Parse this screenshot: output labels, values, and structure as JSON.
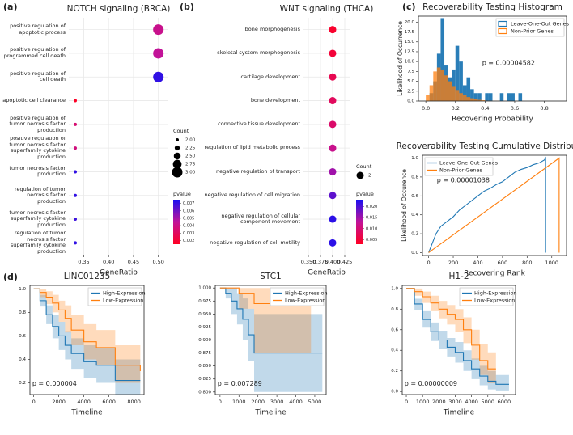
{
  "chart_data": [
    {
      "type": "dot",
      "panel": "(a)",
      "title": "NOTCH signaling (BRCA)",
      "categories": [
        "positive regulation of apoptotic process",
        "positive regulation of programmed cell death",
        "positive regulation of cell death",
        "apoptotic cell clearance",
        "positive regulation of tumor necrosis factor production",
        "positive regulation of tumor necrosis factor superfamily cytokine production",
        "tumor necrosis factor production",
        "regulation of tumor necrosis factor production",
        "tumor necrosis factor superfamily cytokine production",
        "regulation of tumor necrosis factor superfamily cytokine production"
      ],
      "values": [
        0.5,
        0.5,
        0.5,
        0.333,
        0.333,
        0.333,
        0.333,
        0.333,
        0.333,
        0.333
      ],
      "counts": [
        3,
        3,
        3,
        2,
        2,
        2,
        2,
        2,
        2,
        2
      ],
      "pvalues": [
        0.0042,
        0.0045,
        0.0071,
        0.0016,
        0.0035,
        0.0038,
        0.0071,
        0.0071,
        0.0069,
        0.0071
      ],
      "xlabel": "GeneRatio",
      "xlim": [
        0.32,
        0.52
      ],
      "xticks": [
        0.35,
        {
          "value": 0.4,
          "label": "0.40"
        },
        0.45,
        {
          "value": 0.5,
          "label": "0.50"
        }
      ],
      "grid": true,
      "size_legend": {
        "title": "Count",
        "ticks": [
          {
            "value": 2,
            "label": "2.00"
          },
          2.25,
          {
            "value": 2.5,
            "label": "2.50"
          },
          2.75,
          {
            "value": 3,
            "label": "3.00"
          }
        ]
      },
      "colorbar": {
        "title": "pvalue",
        "lim": [
          0.0015,
          0.0075
        ],
        "ticks": [
          0.007,
          0.006,
          0.005,
          0.004,
          0.003,
          0.002
        ],
        "colors": [
          "#ff0022",
          "#c21398",
          "#1a10f0"
        ]
      }
    },
    {
      "type": "dot",
      "panel": "(b)",
      "title": "WNT signaling (THCA)",
      "categories": [
        "bone morphogenesis",
        "skeletal system morphogenesis",
        "cartilage development",
        "bone development",
        "connective tissue development",
        "regulation of lipid metabolic process",
        "negative regulation of transport",
        "negative regulation of cell migration",
        "negative regulation of cellular component movement",
        "negative regulation of cell motility"
      ],
      "values": [
        0.4,
        0.4,
        0.4,
        0.4,
        0.4,
        0.4,
        0.4,
        0.4,
        0.4,
        0.4
      ],
      "counts": [
        2,
        2,
        2,
        2,
        2,
        2,
        2,
        2,
        2,
        2
      ],
      "pvalues": [
        0.004,
        0.005,
        0.007,
        0.008,
        0.009,
        0.012,
        0.015,
        0.019,
        0.022,
        0.022
      ],
      "xlabel": "GeneRatio",
      "xlim": [
        0.34,
        0.435
      ],
      "xticks": [
        {
          "value": 0.35,
          "label": "0.350"
        },
        0.375,
        {
          "value": 0.4,
          "label": "0.400"
        },
        0.425
      ],
      "grid": true,
      "size_legend": {
        "title": "Count",
        "ticks": [
          2
        ]
      },
      "colorbar": {
        "title": "pvalue",
        "lim": [
          0.003,
          0.023
        ],
        "ticks": [
          {
            "value": 0.02,
            "label": "0.020"
          },
          0.015,
          {
            "value": 0.01,
            "label": "0.010"
          },
          0.005
        ],
        "colors": [
          "#ff0022",
          "#c21398",
          "#1a10f0"
        ]
      }
    },
    {
      "type": "histogram",
      "panel": "(c)",
      "title": "Recoverability Testing Histogram",
      "xlabel": "Recovering Probability",
      "ylabel": "Likelihood of Occurrence",
      "bins": [
        0,
        0.025,
        0.05,
        0.075,
        0.1,
        0.125,
        0.15,
        0.175,
        0.2,
        0.225,
        0.25,
        0.275,
        0.3,
        0.325,
        0.35,
        0.375,
        0.4,
        0.425,
        0.45,
        0.475,
        0.5,
        0.525,
        0.55,
        0.575,
        0.6,
        0.625,
        0.65,
        0.675,
        0.7
      ],
      "series": [
        {
          "name": "Leave-One-Out Genes",
          "color": "#1f77b4",
          "values": [
            0,
            2,
            5,
            12,
            21,
            9,
            6,
            8,
            14,
            10,
            4,
            6,
            3,
            2,
            2,
            0,
            2,
            2,
            0,
            0,
            2,
            0,
            2,
            2,
            0,
            2,
            0,
            0
          ]
        },
        {
          "name": "Non-Prior Genes",
          "color": "#ff7f0e",
          "values": [
            1.5,
            4,
            7.5,
            8.5,
            8,
            6.5,
            5,
            3.8,
            2.8,
            2,
            1.5,
            1,
            0.7,
            0.5,
            0.3,
            0.2,
            0.1,
            0.1,
            0.05,
            0.05,
            0,
            0,
            0,
            0,
            0,
            0,
            0,
            0
          ]
        }
      ],
      "xlim": [
        -0.05,
        0.95
      ],
      "xticks": [
        {
          "value": 0,
          "label": "0.0"
        },
        0.2,
        0.4,
        0.6,
        0.8
      ],
      "ylim": [
        0,
        21.5
      ],
      "yticks": [
        {
          "value": 0,
          "label": "0.0"
        },
        2.5,
        {
          "value": 5,
          "label": "5.0"
        },
        7.5,
        {
          "value": 10,
          "label": "10.0"
        },
        12.5,
        {
          "value": 15,
          "label": "15.0"
        },
        17.5,
        {
          "value": 20,
          "label": "20.0"
        }
      ],
      "annotation": "p = 0.00004582",
      "legend": "upper right"
    },
    {
      "type": "line",
      "title": "Recoverability Testing Cumulative Distribution",
      "xlabel": "Recovering Rank",
      "ylabel": "Likelihood of Occurence",
      "series": [
        {
          "name": "Leave-One-Out Genes",
          "color": "#1f77b4",
          "x": [
            0,
            30,
            60,
            100,
            150,
            200,
            250,
            300,
            350,
            400,
            450,
            500,
            550,
            600,
            650,
            700,
            750,
            800,
            850,
            900,
            940,
            950,
            950
          ],
          "values": [
            0,
            0.1,
            0.2,
            0.28,
            0.33,
            0.38,
            0.45,
            0.5,
            0.55,
            0.6,
            0.65,
            0.68,
            0.72,
            0.75,
            0.8,
            0.85,
            0.88,
            0.9,
            0.93,
            0.95,
            0.98,
            1,
            0
          ]
        },
        {
          "name": "Non-Prior Genes",
          "color": "#ff7f0e",
          "x": [
            0,
            1060,
            1060
          ],
          "values": [
            0,
            1,
            0
          ]
        }
      ],
      "xlim": [
        -50,
        1120
      ],
      "xticks": [
        0,
        200,
        400,
        600,
        800,
        1000
      ],
      "ylim": [
        -0.03,
        1.03
      ],
      "yticks": [
        {
          "value": 0,
          "label": "0.0"
        },
        0.2,
        0.4,
        0.6,
        0.8,
        {
          "value": 1,
          "label": "1.0"
        }
      ],
      "annotation": "p = 0.00001038",
      "legend": "upper left"
    },
    {
      "type": "km",
      "panel": "(d)",
      "title": "LINC01235",
      "xlabel": "Timeline",
      "annotation": "p = 0.000004",
      "series": [
        {
          "name": "High-Expression",
          "color": "#1f77b4",
          "x": [
            0,
            500,
            1000,
            1500,
            2000,
            2500,
            3000,
            4000,
            5000,
            6500,
            8500
          ],
          "values": [
            1,
            0.9,
            0.78,
            0.68,
            0.6,
            0.52,
            0.45,
            0.38,
            0.35,
            0.22,
            0.22
          ],
          "lower": [
            1,
            0.85,
            0.7,
            0.58,
            0.48,
            0.4,
            0.32,
            0.24,
            0.2,
            0.1,
            0.1
          ],
          "upper": [
            1,
            0.95,
            0.86,
            0.78,
            0.72,
            0.64,
            0.58,
            0.52,
            0.5,
            0.4,
            0.4
          ]
        },
        {
          "name": "Low-Expression",
          "color": "#ff7f0e",
          "x": [
            0,
            500,
            1000,
            1500,
            2000,
            2500,
            3000,
            4000,
            5000,
            6500,
            8500
          ],
          "values": [
            1,
            0.97,
            0.93,
            0.88,
            0.82,
            0.75,
            0.65,
            0.55,
            0.5,
            0.35,
            0.3
          ],
          "lower": [
            1,
            0.93,
            0.87,
            0.8,
            0.72,
            0.63,
            0.52,
            0.4,
            0.35,
            0.2,
            0.15
          ],
          "upper": [
            1,
            1,
            0.98,
            0.95,
            0.9,
            0.86,
            0.78,
            0.7,
            0.65,
            0.52,
            0.5
          ]
        }
      ],
      "xlim": [
        -300,
        8800
      ],
      "xticks": [
        0,
        2000,
        4000,
        6000,
        8000
      ],
      "ylim": [
        0.1,
        1.03
      ],
      "yticks": [
        0.2,
        0.4,
        0.6,
        0.8,
        {
          "value": 1,
          "label": "1.0"
        }
      ],
      "legend": "upper right"
    },
    {
      "type": "km",
      "title": "STC1",
      "xlabel": "Timeline",
      "annotation": "p = 0.007289",
      "series": [
        {
          "name": "High-Expression",
          "color": "#1f77b4",
          "x": [
            0,
            300,
            600,
            900,
            1200,
            1500,
            1800,
            5400
          ],
          "values": [
            1,
            0.99,
            0.975,
            0.96,
            0.94,
            0.91,
            0.875,
            0.875
          ],
          "lower": [
            1,
            0.98,
            0.95,
            0.93,
            0.9,
            0.86,
            0.8,
            0.8
          ],
          "upper": [
            1,
            1,
            1,
            0.99,
            0.98,
            0.96,
            0.95,
            0.95
          ]
        },
        {
          "name": "Low-Expression",
          "color": "#ff7f0e",
          "x": [
            0,
            700,
            1000,
            1800,
            4800
          ],
          "values": [
            1,
            1,
            0.99,
            0.97,
            0.97
          ],
          "lower": [
            1,
            1,
            0.96,
            0.875,
            0.875
          ],
          "upper": [
            1,
            1,
            1,
            1,
            1
          ]
        }
      ],
      "xlim": [
        -250,
        5600
      ],
      "xticks": [
        0,
        1000,
        2000,
        3000,
        4000,
        5000
      ],
      "ylim": [
        0.795,
        1.005
      ],
      "yticks": [
        {
          "value": 0.8,
          "label": "0.800"
        },
        0.825,
        {
          "value": 0.85,
          "label": "0.850"
        },
        0.875,
        {
          "value": 0.9,
          "label": "0.900"
        },
        0.925,
        {
          "value": 0.95,
          "label": "0.950"
        },
        0.975,
        {
          "value": 1,
          "label": "1.000"
        }
      ],
      "legend": "upper right"
    },
    {
      "type": "km",
      "title": "H1-2",
      "xlabel": "Timeline",
      "annotation": "p = 0.00000009",
      "series": [
        {
          "name": "High-Expression",
          "color": "#1f77b4",
          "x": [
            0,
            500,
            1000,
            1500,
            2000,
            2500,
            3000,
            3500,
            4000,
            4500,
            5000,
            5500,
            6300
          ],
          "values": [
            1,
            0.85,
            0.7,
            0.58,
            0.5,
            0.43,
            0.38,
            0.3,
            0.22,
            0.15,
            0.1,
            0.07,
            0.07
          ],
          "lower": [
            1,
            0.79,
            0.62,
            0.49,
            0.41,
            0.34,
            0.28,
            0.2,
            0.12,
            0.06,
            0.02,
            0.01,
            0.01
          ],
          "upper": [
            1,
            0.9,
            0.78,
            0.67,
            0.59,
            0.52,
            0.48,
            0.4,
            0.32,
            0.25,
            0.2,
            0.16,
            0.16
          ]
        },
        {
          "name": "Low-Expression",
          "color": "#ff7f0e",
          "x": [
            0,
            500,
            1000,
            1500,
            2000,
            2500,
            3000,
            3500,
            4000,
            4500,
            5000,
            5500
          ],
          "values": [
            1,
            0.97,
            0.92,
            0.86,
            0.8,
            0.75,
            0.7,
            0.6,
            0.45,
            0.3,
            0.22,
            0.22
          ],
          "lower": [
            1,
            0.93,
            0.86,
            0.78,
            0.71,
            0.65,
            0.58,
            0.47,
            0.31,
            0.16,
            0.08,
            0.08
          ],
          "upper": [
            1,
            1,
            0.97,
            0.93,
            0.88,
            0.84,
            0.8,
            0.72,
            0.6,
            0.46,
            0.38,
            0.38
          ]
        }
      ],
      "xlim": [
        -250,
        6700
      ],
      "xticks": [
        0,
        1000,
        2000,
        3000,
        4000,
        5000,
        6000
      ],
      "ylim": [
        -0.03,
        1.03
      ],
      "yticks": [
        {
          "value": 0,
          "label": "0.0"
        },
        0.2,
        0.4,
        0.6,
        0.8,
        {
          "value": 1,
          "label": "1.0"
        }
      ],
      "legend": "upper right"
    }
  ]
}
